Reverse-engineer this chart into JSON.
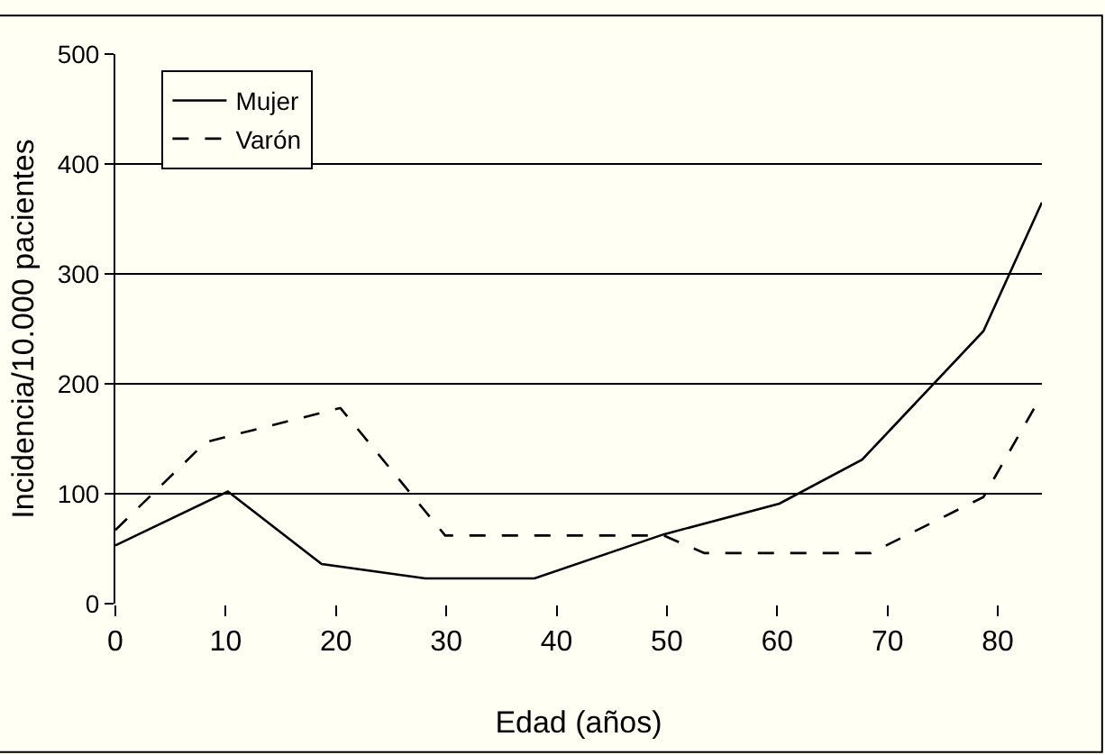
{
  "chart_data": {
    "type": "line",
    "xlabel": "Edad (años)",
    "ylabel": "Incidencia/10.000 pacientes",
    "xlim": [
      0,
      84
    ],
    "xticks": [
      0,
      10,
      20,
      30,
      40,
      50,
      60,
      70,
      80
    ],
    "ylim": [
      0,
      500
    ],
    "yticks": [
      0,
      100,
      200,
      300,
      400,
      500
    ],
    "grid": "y",
    "legend": "top left",
    "marker": "none",
    "series": [
      {
        "name": "Mujer",
        "color": "#000000",
        "line_style": "solid",
        "x": [
          0,
          10.2,
          18.7,
          28.1,
          38,
          49.7,
          60.2,
          67.7,
          78.7,
          84
        ],
        "values": [
          53,
          102,
          36,
          23,
          23,
          63,
          91,
          131,
          248,
          365
        ]
      },
      {
        "name": "Varón",
        "color": "#000000",
        "line_style": "dashed",
        "x": [
          0,
          8.2,
          20.4,
          29.9,
          49.7,
          53.4,
          68.5,
          78.7,
          84
        ],
        "values": [
          67,
          147,
          178,
          62,
          62,
          46,
          46,
          97,
          190
        ]
      }
    ]
  }
}
